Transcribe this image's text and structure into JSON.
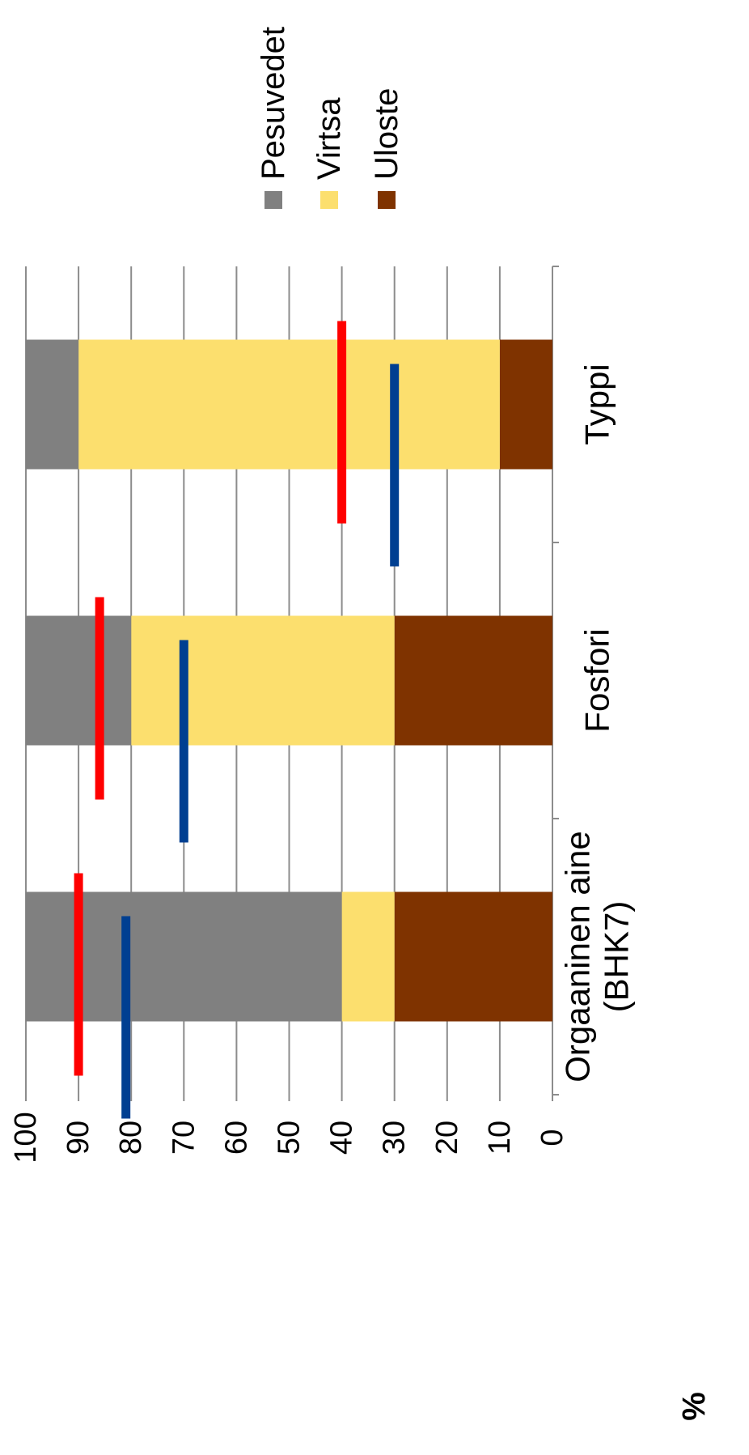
{
  "chart_data": {
    "type": "bar",
    "stacked": true,
    "orientation": "rotated-90-ccw",
    "categories": [
      "Orgaaninen aine (BHK7)",
      "Fosfori",
      "Typpi"
    ],
    "category_lines": [
      [
        "Orgaaninen aine",
        "(BHK7)"
      ],
      [
        "Fosfori"
      ],
      [
        "Typpi"
      ]
    ],
    "series": [
      {
        "name": "Uloste",
        "color": "#7f3300",
        "values": [
          30,
          30,
          10
        ]
      },
      {
        "name": "Virtsa",
        "color": "#fcdf6e",
        "values": [
          10,
          50,
          80
        ]
      },
      {
        "name": "Pesuvedet",
        "color": "#808080",
        "values": [
          60,
          20,
          10
        ]
      }
    ],
    "reference_lines": [
      {
        "color": "#ff0000",
        "values": [
          90,
          86,
          40
        ]
      },
      {
        "color": "#003f91",
        "values": [
          81,
          70,
          30
        ]
      }
    ],
    "legend": {
      "position": "right",
      "order": [
        "Pesuvedet",
        "Virtsa",
        "Uloste"
      ]
    },
    "ylabel": "%",
    "ylim": [
      0,
      100
    ],
    "yticks": [
      "0",
      "10",
      "20",
      "30",
      "40",
      "50",
      "60",
      "70",
      "80",
      "90",
      "100"
    ],
    "grid": true
  }
}
